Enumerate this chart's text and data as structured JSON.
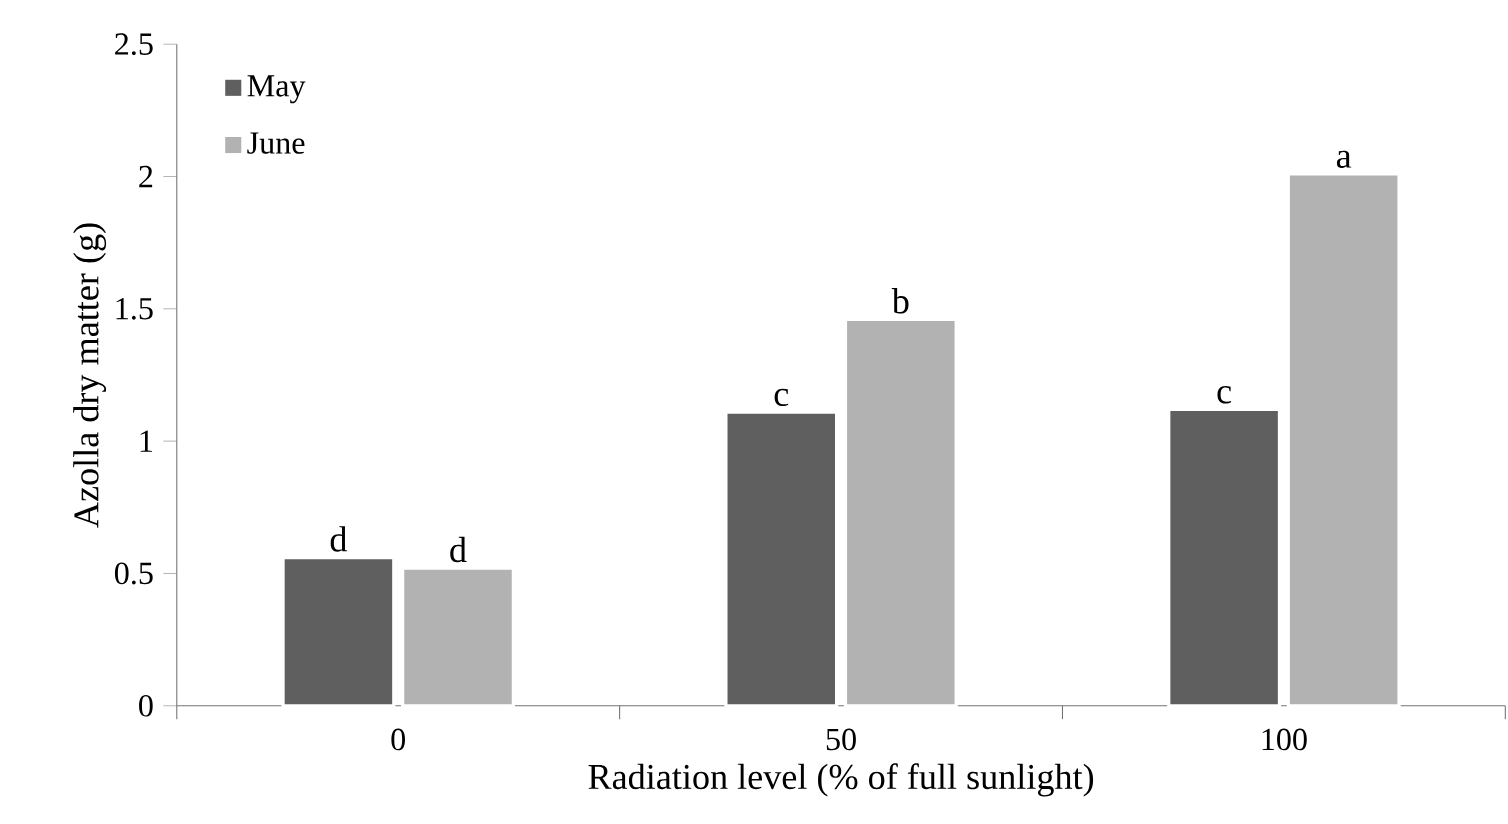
{
  "chart_data": {
    "type": "bar",
    "xlabel": "Radiation level (% of full sunlight)",
    "ylabel": "Azolla dry matter (g)",
    "categories": [
      "0",
      "50",
      "100"
    ],
    "series": [
      {
        "name": "May",
        "color": "#5f5f5f",
        "values": [
          0.56,
          1.11,
          1.12
        ]
      },
      {
        "name": "June",
        "color": "#b2b2b2",
        "values": [
          0.52,
          1.46,
          2.01
        ]
      }
    ],
    "ylim": [
      0,
      2.5
    ],
    "yticks": [
      0,
      0.5,
      1,
      1.5,
      2,
      2.5
    ],
    "legend": "top left",
    "grid": false,
    "annotations": [
      {
        "text": "d",
        "x": "0",
        "y": 0.56
      },
      {
        "text": "d",
        "x": "0",
        "y": 0.52
      },
      {
        "text": "c",
        "x": "50",
        "y": 1.11
      },
      {
        "text": "b",
        "x": "50",
        "y": 1.46
      },
      {
        "text": "c",
        "x": "100",
        "y": 1.12
      },
      {
        "text": "a",
        "x": "100",
        "y": 2.01
      }
    ]
  }
}
